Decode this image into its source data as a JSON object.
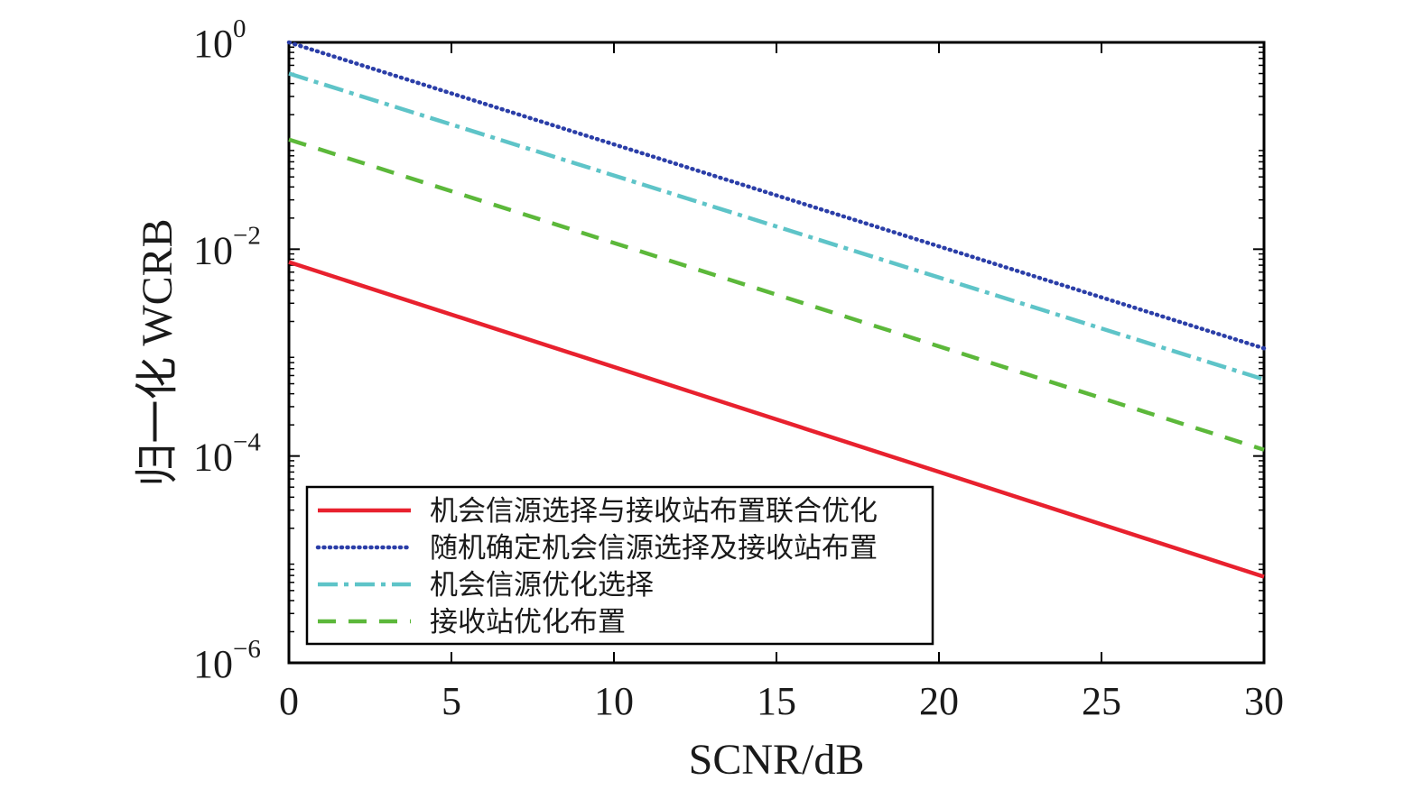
{
  "chart_data": {
    "type": "line",
    "xlabel": "SCNR/dB",
    "ylabel": "归一化 WCRB",
    "xlim": [
      0,
      30
    ],
    "ylim": [
      1e-06,
      1
    ],
    "yscale": "log",
    "x_ticks": [
      "0",
      "5",
      "10",
      "15",
      "20",
      "25",
      "30"
    ],
    "y_ticks": [
      {
        "base": "10",
        "exp": "0",
        "value": 1
      },
      {
        "base": "10",
        "exp": "−2",
        "value": 0.01
      },
      {
        "base": "10",
        "exp": "−4",
        "value": 0.0001
      },
      {
        "base": "10",
        "exp": "−6",
        "value": 1e-06
      }
    ],
    "grid": false,
    "legend_position": "bottom-left",
    "series": [
      {
        "name": "机会信源选择与接收站布置联合优化",
        "color": "#e8212e",
        "style": "solid",
        "x": [
          0,
          30
        ],
        "y": [
          0.0075,
          6.8e-06
        ]
      },
      {
        "name": "随机确定机会信源选择及接收站布置",
        "color": "#2b3ea8",
        "style": "dotted",
        "x": [
          0,
          30
        ],
        "y": [
          1.0,
          0.0011
        ]
      },
      {
        "name": "机会信源优化选择",
        "color": "#5ec4c8",
        "style": "dashdot",
        "x": [
          0,
          30
        ],
        "y": [
          0.5,
          0.00055
        ]
      },
      {
        "name": "接收站优化布置",
        "color": "#5cb83a",
        "style": "dashed",
        "x": [
          0,
          30
        ],
        "y": [
          0.115,
          0.000115
        ]
      }
    ]
  }
}
